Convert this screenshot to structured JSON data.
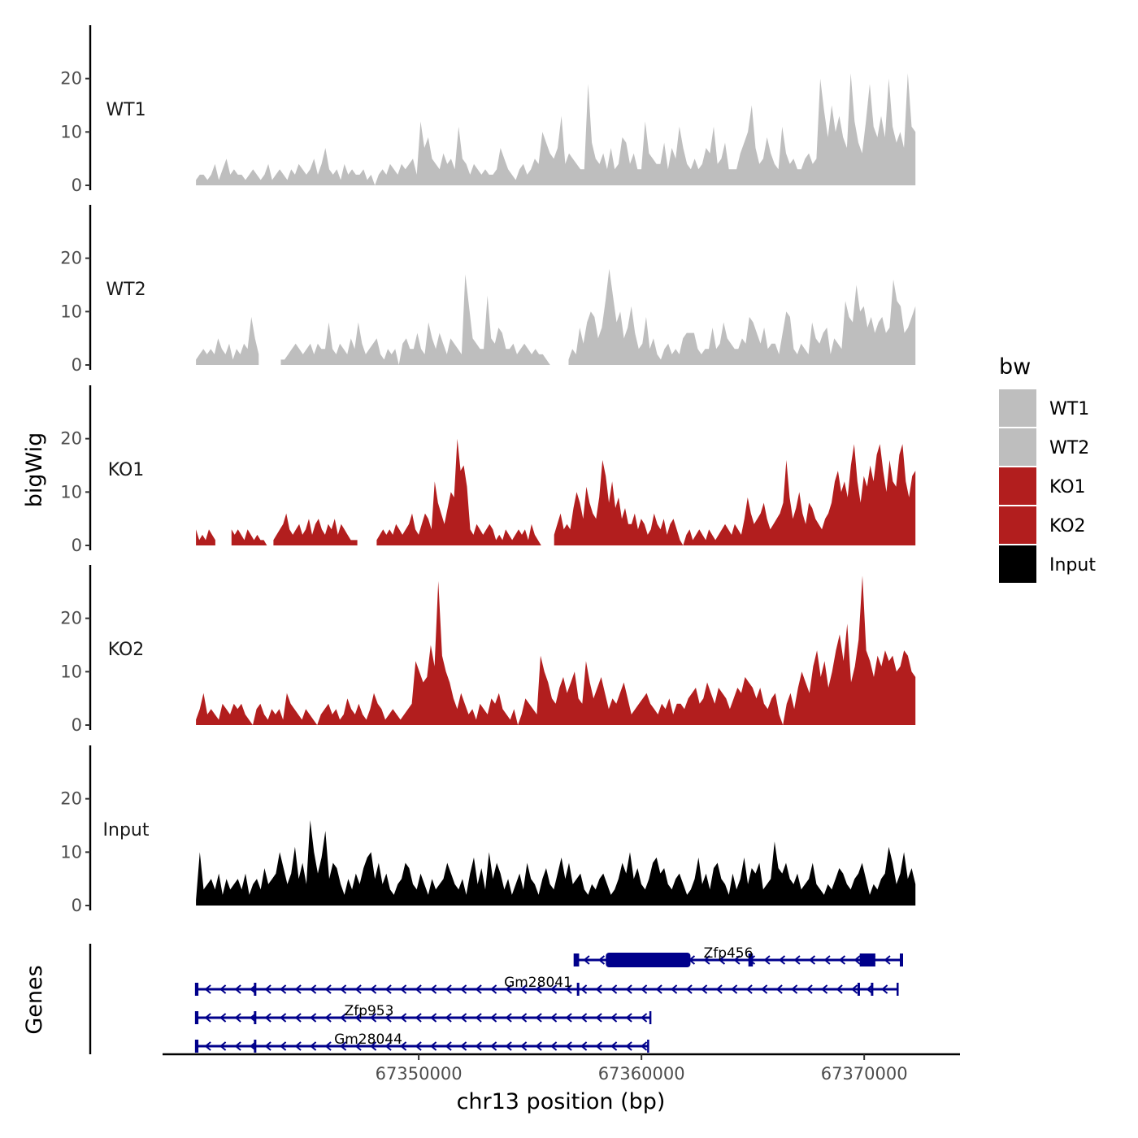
{
  "chart_data": {
    "type": "area",
    "chromosome": "chr13",
    "xlabel": "chr13 position (bp)",
    "ylabel": "bigWig",
    "genes_axis_label": "Genes",
    "xlim": [
      67338500,
      67374300
    ],
    "x_ticks": [
      67350000,
      67360000,
      67370000
    ],
    "x_tick_labels": [
      "67350000",
      "67360000",
      "67370000"
    ],
    "ylim": [
      0,
      30
    ],
    "y_ticks": [
      0,
      10,
      20
    ],
    "y_tick_labels": [
      "0",
      "10",
      "20"
    ],
    "x_start": 67340000,
    "x_end": 67372300,
    "legend": {
      "title": "bw",
      "position": "right",
      "entries": [
        {
          "label": "WT1",
          "color": "#bebebe"
        },
        {
          "label": "WT2",
          "color": "#bebebe"
        },
        {
          "label": "KO1",
          "color": "#b21e1e"
        },
        {
          "label": "KO2",
          "color": "#b21e1e"
        },
        {
          "label": "Input",
          "color": "#000000"
        }
      ]
    },
    "series": [
      {
        "name": "WT1",
        "color": "#bebebe",
        "values": [
          1,
          2,
          2,
          1,
          2,
          4,
          1,
          3,
          5,
          2,
          3,
          2,
          2,
          1,
          2,
          3,
          2,
          1,
          2,
          4,
          1,
          2,
          3,
          2,
          1,
          3,
          2,
          4,
          3,
          2,
          3,
          5,
          2,
          4,
          7,
          3,
          2,
          3,
          1,
          4,
          2,
          3,
          2,
          2,
          3,
          1,
          2,
          0,
          2,
          3,
          2,
          4,
          3,
          2,
          4,
          3,
          4,
          5,
          2,
          12,
          7,
          9,
          5,
          4,
          3,
          6,
          4,
          5,
          3,
          11,
          5,
          4,
          2,
          4,
          3,
          2,
          3,
          2,
          2,
          3,
          7,
          5,
          3,
          2,
          1,
          3,
          4,
          2,
          3,
          5,
          4,
          10,
          8,
          6,
          5,
          7,
          13,
          4,
          6,
          5,
          4,
          3,
          3,
          19,
          8,
          5,
          4,
          6,
          3,
          7,
          3,
          4,
          9,
          8,
          4,
          6,
          3,
          3,
          12,
          6,
          5,
          4,
          4,
          8,
          3,
          7,
          5,
          11,
          7,
          4,
          3,
          5,
          3,
          4,
          7,
          6,
          11,
          4,
          5,
          8,
          3,
          3,
          3,
          6,
          8,
          10,
          15,
          7,
          4,
          5,
          9,
          6,
          4,
          3,
          11,
          6,
          4,
          5,
          3,
          3,
          5,
          6,
          4,
          5,
          20,
          14,
          9,
          15,
          10,
          13,
          9,
          7,
          21,
          12,
          8,
          6,
          12,
          19,
          11,
          9,
          13,
          9,
          20,
          11,
          8,
          10,
          7,
          21,
          11,
          10
        ]
      },
      {
        "name": "WT2",
        "color": "#bebebe",
        "values": [
          1,
          2,
          3,
          2,
          3,
          2,
          5,
          3,
          2,
          4,
          1,
          3,
          2,
          4,
          3,
          9,
          5,
          2,
          null,
          null,
          null,
          null,
          null,
          1,
          1,
          2,
          3,
          4,
          3,
          2,
          3,
          4,
          2,
          4,
          3,
          3,
          8,
          3,
          2,
          4,
          3,
          2,
          5,
          3,
          8,
          4,
          2,
          3,
          4,
          5,
          2,
          1,
          3,
          2,
          3,
          0,
          4,
          5,
          3,
          3,
          6,
          3,
          2,
          8,
          5,
          3,
          6,
          4,
          2,
          5,
          4,
          3,
          2,
          17,
          11,
          5,
          4,
          3,
          3,
          13,
          5,
          4,
          7,
          6,
          3,
          3,
          4,
          2,
          3,
          4,
          3,
          2,
          3,
          2,
          2,
          1,
          0,
          null,
          null,
          null,
          null,
          1,
          3,
          2,
          7,
          4,
          8,
          10,
          9,
          5,
          7,
          12,
          18,
          13,
          8,
          10,
          5,
          7,
          11,
          6,
          3,
          4,
          9,
          3,
          5,
          2,
          1,
          3,
          4,
          2,
          3,
          2,
          5,
          6,
          6,
          6,
          3,
          2,
          3,
          3,
          7,
          3,
          4,
          8,
          5,
          4,
          3,
          3,
          5,
          4,
          9,
          8,
          6,
          4,
          7,
          3,
          4,
          4,
          2,
          6,
          10,
          9,
          3,
          2,
          4,
          3,
          2,
          8,
          5,
          4,
          6,
          7,
          2,
          5,
          4,
          3,
          12,
          9,
          8,
          15,
          10,
          11,
          7,
          9,
          6,
          8,
          9,
          6,
          7,
          16,
          12,
          11,
          6,
          7,
          9,
          11
        ]
      },
      {
        "name": "KO1",
        "color": "#b21e1e",
        "values": [
          3,
          1,
          2,
          1,
          3,
          2,
          1,
          null,
          null,
          null,
          null,
          3,
          2,
          3,
          2,
          1,
          3,
          2,
          1,
          2,
          1,
          1,
          0,
          null,
          1,
          2,
          3,
          4,
          6,
          3,
          2,
          3,
          4,
          2,
          3,
          5,
          2,
          4,
          5,
          3,
          2,
          4,
          3,
          5,
          2,
          4,
          3,
          2,
          1,
          1,
          1,
          null,
          null,
          null,
          null,
          null,
          1,
          2,
          3,
          2,
          3,
          2,
          4,
          3,
          2,
          3,
          4,
          6,
          3,
          2,
          4,
          6,
          5,
          3,
          12,
          8,
          6,
          4,
          7,
          10,
          9,
          20,
          14,
          15,
          11,
          3,
          2,
          4,
          3,
          2,
          3,
          4,
          3,
          1,
          2,
          1,
          3,
          2,
          1,
          2,
          3,
          2,
          3,
          1,
          4,
          2,
          1,
          0,
          null,
          null,
          null,
          2,
          4,
          6,
          3,
          4,
          3,
          7,
          10,
          8,
          5,
          11,
          8,
          6,
          5,
          9,
          16,
          13,
          8,
          12,
          7,
          9,
          5,
          7,
          4,
          4,
          6,
          3,
          5,
          4,
          2,
          3,
          6,
          4,
          3,
          5,
          2,
          4,
          5,
          3,
          1,
          0,
          2,
          3,
          1,
          2,
          3,
          2,
          1,
          3,
          2,
          1,
          2,
          3,
          4,
          3,
          2,
          4,
          3,
          2,
          5,
          9,
          6,
          4,
          5,
          6,
          8,
          5,
          3,
          4,
          5,
          6,
          8,
          16,
          9,
          5,
          7,
          10,
          6,
          4,
          8,
          7,
          5,
          4,
          3,
          5,
          6,
          8,
          12,
          14,
          10,
          12,
          9,
          15,
          19,
          12,
          8,
          13,
          11,
          15,
          12,
          17,
          19,
          14,
          10,
          16,
          12,
          11,
          17,
          19,
          12,
          9,
          13,
          14
        ]
      },
      {
        "name": "KO2",
        "color": "#b21e1e",
        "values": [
          1,
          3,
          6,
          2,
          3,
          2,
          1,
          4,
          3,
          2,
          4,
          3,
          4,
          2,
          1,
          0,
          3,
          4,
          2,
          1,
          3,
          2,
          3,
          1,
          6,
          4,
          3,
          2,
          1,
          3,
          2,
          1,
          0,
          2,
          3,
          4,
          2,
          3,
          1,
          2,
          5,
          3,
          2,
          4,
          2,
          1,
          3,
          6,
          4,
          3,
          1,
          2,
          3,
          2,
          1,
          2,
          3,
          4,
          12,
          10,
          8,
          9,
          15,
          11,
          27,
          13,
          10,
          8,
          5,
          3,
          6,
          4,
          2,
          3,
          1,
          4,
          3,
          2,
          5,
          4,
          6,
          3,
          2,
          1,
          3,
          0,
          2,
          5,
          4,
          3,
          2,
          13,
          10,
          8,
          5,
          4,
          7,
          9,
          6,
          8,
          10,
          5,
          4,
          12,
          8,
          5,
          7,
          9,
          6,
          3,
          5,
          4,
          6,
          8,
          5,
          2,
          3,
          4,
          5,
          6,
          4,
          3,
          2,
          4,
          3,
          5,
          2,
          4,
          4,
          3,
          5,
          6,
          7,
          4,
          5,
          8,
          6,
          4,
          7,
          6,
          5,
          3,
          5,
          7,
          6,
          9,
          8,
          7,
          5,
          7,
          4,
          3,
          5,
          6,
          2,
          0,
          4,
          6,
          3,
          7,
          10,
          8,
          6,
          11,
          14,
          9,
          12,
          7,
          10,
          14,
          17,
          12,
          19,
          8,
          11,
          16,
          28,
          14,
          12,
          9,
          13,
          11,
          14,
          12,
          13,
          10,
          11,
          14,
          13,
          10,
          9
        ]
      },
      {
        "name": "Input",
        "color": "#000000",
        "values": [
          1,
          10,
          3,
          4,
          5,
          3,
          6,
          2,
          5,
          3,
          4,
          5,
          3,
          6,
          2,
          4,
          5,
          3,
          7,
          4,
          5,
          6,
          10,
          7,
          4,
          6,
          11,
          5,
          8,
          4,
          16,
          10,
          6,
          9,
          14,
          5,
          8,
          7,
          4,
          2,
          5,
          3,
          6,
          4,
          7,
          9,
          10,
          5,
          8,
          4,
          6,
          3,
          2,
          4,
          5,
          8,
          7,
          4,
          3,
          6,
          4,
          2,
          5,
          3,
          4,
          5,
          8,
          6,
          4,
          3,
          5,
          2,
          6,
          9,
          4,
          7,
          3,
          10,
          5,
          8,
          6,
          3,
          5,
          2,
          4,
          6,
          3,
          8,
          5,
          4,
          2,
          5,
          7,
          4,
          3,
          6,
          9,
          5,
          8,
          4,
          5,
          6,
          3,
          2,
          4,
          3,
          5,
          6,
          4,
          2,
          3,
          5,
          8,
          6,
          10,
          5,
          7,
          4,
          3,
          5,
          8,
          9,
          6,
          7,
          4,
          3,
          5,
          6,
          4,
          2,
          3,
          5,
          9,
          4,
          6,
          3,
          7,
          8,
          5,
          4,
          2,
          6,
          3,
          5,
          9,
          4,
          7,
          6,
          8,
          3,
          4,
          5,
          12,
          7,
          6,
          8,
          5,
          4,
          6,
          3,
          4,
          5,
          8,
          4,
          3,
          2,
          4,
          3,
          5,
          7,
          6,
          4,
          3,
          5,
          6,
          8,
          5,
          2,
          4,
          3,
          5,
          6,
          11,
          8,
          4,
          6,
          10,
          5,
          7,
          4
        ]
      }
    ],
    "genes": [
      {
        "name": "Zfp456",
        "row": 0,
        "start": 67357000,
        "end": 67371700,
        "exons": [
          67357000,
          67357200,
          67364800,
          67365000,
          67369800,
          67370500,
          67371600,
          67371700
        ],
        "thick": [
          67358400,
          67362200
        ]
      },
      {
        "name": "Gm28041",
        "row": 1,
        "start": 67340000,
        "end": 67371500,
        "exons": [
          67340000,
          67340100,
          67342600,
          67342700,
          67357100,
          67357200,
          67369700,
          67369800,
          67370300,
          67370400
        ]
      },
      {
        "name": "Zfp953",
        "row": 2,
        "start": 67340000,
        "end": 67360400,
        "exons": [
          67340000,
          67340100,
          67342600,
          67342700
        ]
      },
      {
        "name": "Gm28044",
        "row": 3,
        "start": 67340000,
        "end": 67360300,
        "exons": [
          67340000,
          67340100,
          67342600,
          67342700
        ]
      }
    ]
  }
}
